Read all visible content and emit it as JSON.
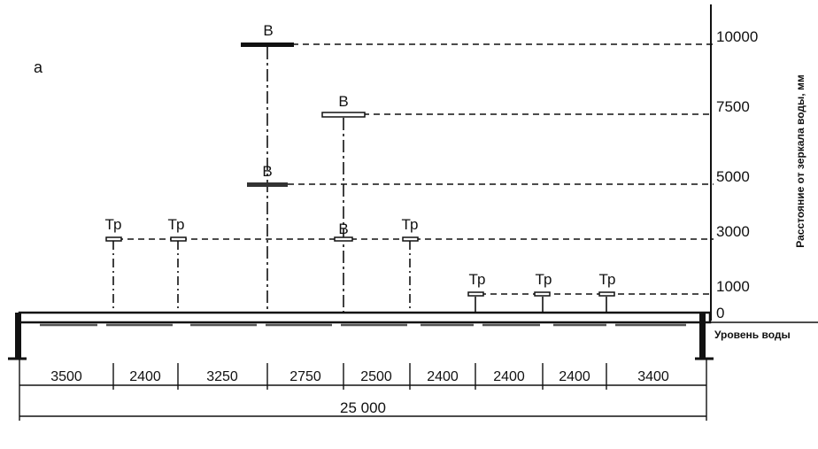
{
  "panel_label": "а",
  "axis_title": "Расстояние от зеркала воды, мм",
  "water_level_label": "Уровень воды",
  "height_levels": [
    "10000",
    "7500",
    "5000",
    "3000",
    "1000",
    "0"
  ],
  "markers": [
    {
      "label": "Тр",
      "height": 3000
    },
    {
      "label": "Тр",
      "height": 3000
    },
    {
      "label": "В",
      "height": 10000
    },
    {
      "label": "В",
      "height": 5000
    },
    {
      "label": "В",
      "height": 7500
    },
    {
      "label": "В",
      "height": 3000
    },
    {
      "label": "Тр",
      "height": 3000
    },
    {
      "label": "Тр",
      "height": 1000
    },
    {
      "label": "Тр",
      "height": 1000
    },
    {
      "label": "Тр",
      "height": 1000
    }
  ],
  "spacings": [
    "3500",
    "2400",
    "3250",
    "2750",
    "2500",
    "2400",
    "2400",
    "2400",
    "3400"
  ],
  "total_length": "25 000"
}
